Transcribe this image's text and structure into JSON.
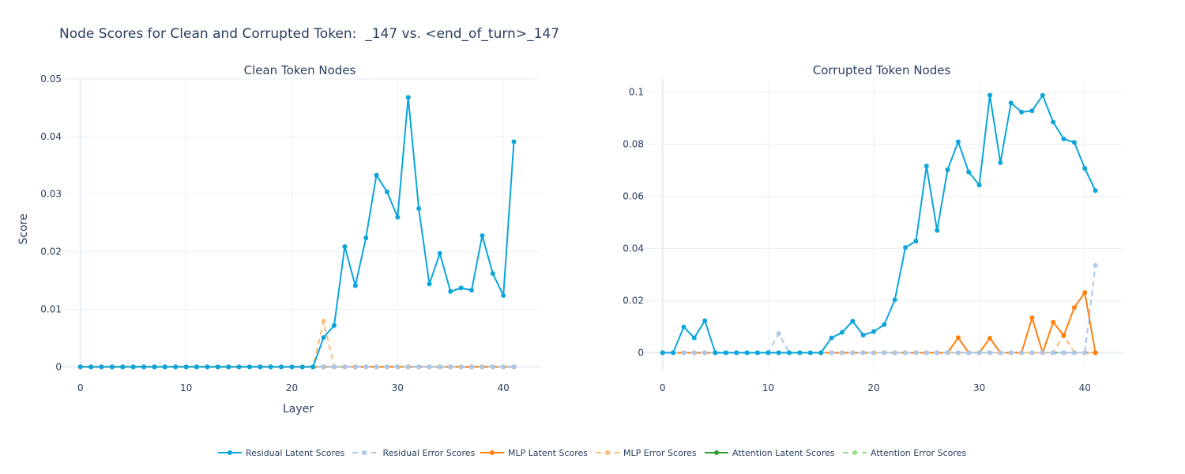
{
  "title": "Node Scores for Clean and Corrupted Token:  _147 vs. <end_of_turn>_147",
  "chart_data": [
    {
      "type": "line",
      "title": "Clean Token Nodes",
      "xlabel": "Layer",
      "ylabel": "Score",
      "xlim": [
        -2,
        43.5
      ],
      "ylim": [
        -0.0005,
        0.05
      ],
      "xticks": [
        0,
        10,
        20,
        30,
        40
      ],
      "yticks": [
        0,
        0.01,
        0.02,
        0.03,
        0.04,
        0.05
      ],
      "ytick_labels": [
        "0",
        "0.01",
        "0.02",
        "0.03",
        "0.04",
        "0.05"
      ],
      "x": [
        0,
        1,
        2,
        3,
        4,
        5,
        6,
        7,
        8,
        9,
        10,
        11,
        12,
        13,
        14,
        15,
        16,
        17,
        18,
        19,
        20,
        21,
        22,
        23,
        24,
        25,
        26,
        27,
        28,
        29,
        30,
        31,
        32,
        33,
        34,
        35,
        36,
        37,
        38,
        39,
        40,
        41
      ],
      "series": [
        {
          "name": "Residual Latent Scores",
          "color": "#0aa5dc",
          "dash": false,
          "values": [
            0,
            0,
            0,
            0,
            0,
            0,
            0,
            0,
            0,
            0,
            0,
            0,
            0,
            0,
            0,
            0,
            0,
            0,
            0,
            0,
            0,
            0,
            0,
            0.0051,
            0.0072,
            0.0209,
            0.0141,
            0.0224,
            0.0333,
            0.0304,
            0.026,
            0.0468,
            0.0275,
            0.0144,
            0.0197,
            0.0131,
            0.0137,
            0.0133,
            0.0228,
            0.0162,
            0.0124,
            0.0391
          ]
        },
        {
          "name": " Residual Error Scores",
          "color": "#aec7e8",
          "dash": true,
          "values": [
            0,
            0,
            0,
            0,
            0,
            0,
            0,
            0,
            0,
            0,
            0,
            0,
            0,
            0,
            0,
            0,
            0,
            0,
            0,
            0,
            0,
            0,
            0,
            0,
            0,
            0,
            0,
            0,
            0,
            0,
            0,
            0,
            0,
            0,
            0,
            0,
            0,
            0,
            0,
            0,
            0,
            0
          ]
        },
        {
          "name": "MLP Latent Scores",
          "color": "#ff7f0e",
          "dash": false,
          "values": [
            0,
            0,
            0,
            0,
            0,
            0,
            0,
            0,
            0,
            0,
            0,
            0,
            0,
            0,
            0,
            0,
            0,
            0,
            0,
            0,
            0,
            0,
            0,
            0,
            0,
            0,
            0,
            0,
            0,
            0,
            0,
            0,
            0,
            0,
            0,
            0,
            0,
            0,
            0,
            0,
            0,
            0
          ]
        },
        {
          "name": "MLP Error Scores",
          "color": "#ffbb78",
          "dash": true,
          "values": [
            0,
            0,
            0,
            0,
            0,
            0,
            0,
            0,
            0,
            0,
            0,
            0,
            0,
            0,
            0,
            0,
            0,
            0,
            0,
            0,
            0,
            0,
            0,
            0.0079,
            0,
            0,
            0,
            0,
            0,
            0,
            0,
            0,
            0,
            0,
            0,
            0,
            0,
            0,
            0,
            0,
            0,
            0
          ]
        },
        {
          "name": "Attention Latent Scores",
          "color": "#2ca02c",
          "dash": false,
          "values": [
            0,
            0,
            0,
            0,
            0,
            0,
            0,
            0,
            0,
            0,
            0,
            0,
            0,
            0,
            0,
            0,
            0,
            0,
            0,
            0,
            0,
            0,
            0,
            0,
            0,
            0,
            0,
            0,
            0,
            0,
            0,
            0,
            0,
            0,
            0,
            0,
            0,
            0,
            0,
            0,
            0,
            0
          ]
        },
        {
          "name": "Attention Error Scores",
          "color": "#98df8a",
          "dash": true,
          "values": [
            0,
            0,
            0,
            0,
            0,
            0,
            0,
            0,
            0,
            0,
            0,
            0,
            0,
            0,
            0,
            0,
            0,
            0,
            0,
            0,
            0,
            0,
            0,
            0,
            0,
            0,
            0,
            0,
            0,
            0,
            0,
            0,
            0,
            0,
            0,
            0,
            0,
            0,
            0,
            0,
            0,
            0
          ]
        }
      ]
    },
    {
      "type": "line",
      "title": "Corrupted Token Nodes",
      "xlabel": "",
      "ylabel": "",
      "xlim": [
        -2,
        43.5
      ],
      "ylim": [
        -0.0065,
        0.105
      ],
      "xticks": [
        0,
        10,
        20,
        30,
        40
      ],
      "yticks": [
        0,
        0.02,
        0.04,
        0.06,
        0.08,
        0.1
      ],
      "ytick_labels": [
        "0",
        "0.02",
        "0.04",
        "0.06",
        "0.08",
        "0.1"
      ],
      "x": [
        0,
        1,
        2,
        3,
        4,
        5,
        6,
        7,
        8,
        9,
        10,
        11,
        12,
        13,
        14,
        15,
        16,
        17,
        18,
        19,
        20,
        21,
        22,
        23,
        24,
        25,
        26,
        27,
        28,
        29,
        30,
        31,
        32,
        33,
        34,
        35,
        36,
        37,
        38,
        39,
        40,
        41
      ],
      "series": [
        {
          "name": "Residual Latent Scores",
          "color": "#0aa5dc",
          "dash": false,
          "values": [
            0,
            0,
            0.0099,
            0.0057,
            0.0123,
            0,
            0,
            0,
            0,
            0,
            0,
            0,
            0,
            0,
            0,
            0,
            0.0057,
            0.0078,
            0.0121,
            0.0068,
            0.0081,
            0.0108,
            0.0203,
            0.0404,
            0.0428,
            0.0716,
            0.0469,
            0.0702,
            0.0809,
            0.0693,
            0.0643,
            0.0988,
            0.0729,
            0.0958,
            0.0923,
            0.0928,
            0.0987,
            0.0885,
            0.082,
            0.0807,
            0.0707,
            0.0622
          ]
        },
        {
          "name": " Residual Error Scores",
          "color": "#aec7e8",
          "dash": true,
          "values": [
            0,
            0,
            0,
            0,
            0,
            0,
            0,
            0,
            0,
            0,
            0,
            0.0074,
            0,
            0,
            0,
            0,
            0,
            0,
            0,
            0,
            0,
            0,
            0,
            0,
            0,
            0,
            0,
            0,
            0,
            0,
            0,
            0,
            0,
            0,
            0,
            0,
            0,
            0,
            0,
            0,
            0,
            0.0335
          ]
        },
        {
          "name": "MLP Latent Scores",
          "color": "#ff7f0e",
          "dash": false,
          "values": [
            0,
            0,
            0,
            0,
            0,
            0,
            0,
            0,
            0,
            0,
            0,
            0,
            0,
            0,
            0,
            0,
            0,
            0,
            0,
            0,
            0,
            0,
            0,
            0,
            0,
            0,
            0,
            0,
            0.0058,
            0,
            0,
            0.0056,
            0,
            0,
            0,
            0.0134,
            0,
            0.0117,
            0.0066,
            0.0173,
            0.0231,
            0
          ]
        },
        {
          "name": "MLP Error Scores",
          "color": "#ffbb78",
          "dash": true,
          "values": [
            0,
            0,
            0,
            0,
            0,
            0,
            0,
            0,
            0,
            0,
            0,
            0,
            0,
            0,
            0,
            0,
            0,
            0,
            0,
            0,
            0,
            0,
            0,
            0,
            0,
            0,
            0,
            0,
            0,
            0,
            0,
            0,
            0,
            0,
            0,
            0,
            0,
            0,
            0.0068,
            0,
            0,
            0
          ]
        },
        {
          "name": "Attention Latent Scores",
          "color": "#2ca02c",
          "dash": false,
          "values": [
            0,
            0,
            0,
            0,
            0,
            0,
            0,
            0,
            0,
            0,
            0,
            0,
            0,
            0,
            0,
            0,
            0,
            0,
            0,
            0,
            0,
            0,
            0,
            0,
            0,
            0,
            0,
            0,
            0,
            0,
            0,
            0,
            0,
            0,
            0,
            0,
            0,
            0,
            0,
            0,
            0,
            0
          ]
        },
        {
          "name": "Attention Error Scores",
          "color": "#98df8a",
          "dash": true,
          "values": [
            0,
            0,
            0,
            0,
            0,
            0,
            0,
            0,
            0,
            0,
            0,
            0,
            0,
            0,
            0,
            0,
            0,
            0,
            0,
            0,
            0,
            0,
            0,
            0,
            0,
            0,
            0,
            0,
            0,
            0,
            0,
            0,
            0,
            0,
            0,
            0,
            0,
            0,
            0,
            0,
            0,
            0
          ]
        }
      ]
    }
  ],
  "legend": {
    "placement": "bottom-center",
    "items": [
      {
        "label": "Residual Latent Scores",
        "color": "#0aa5dc",
        "dash": false
      },
      {
        "label": " Residual Error Scores",
        "color": "#aec7e8",
        "dash": true
      },
      {
        "label": "MLP Latent Scores",
        "color": "#ff7f0e",
        "dash": false
      },
      {
        "label": "MLP Error Scores",
        "color": "#ffbb78",
        "dash": true
      },
      {
        "label": "Attention Latent Scores",
        "color": "#2ca02c",
        "dash": false
      },
      {
        "label": "Attention Error Scores",
        "color": "#98df8a",
        "dash": true
      }
    ]
  }
}
